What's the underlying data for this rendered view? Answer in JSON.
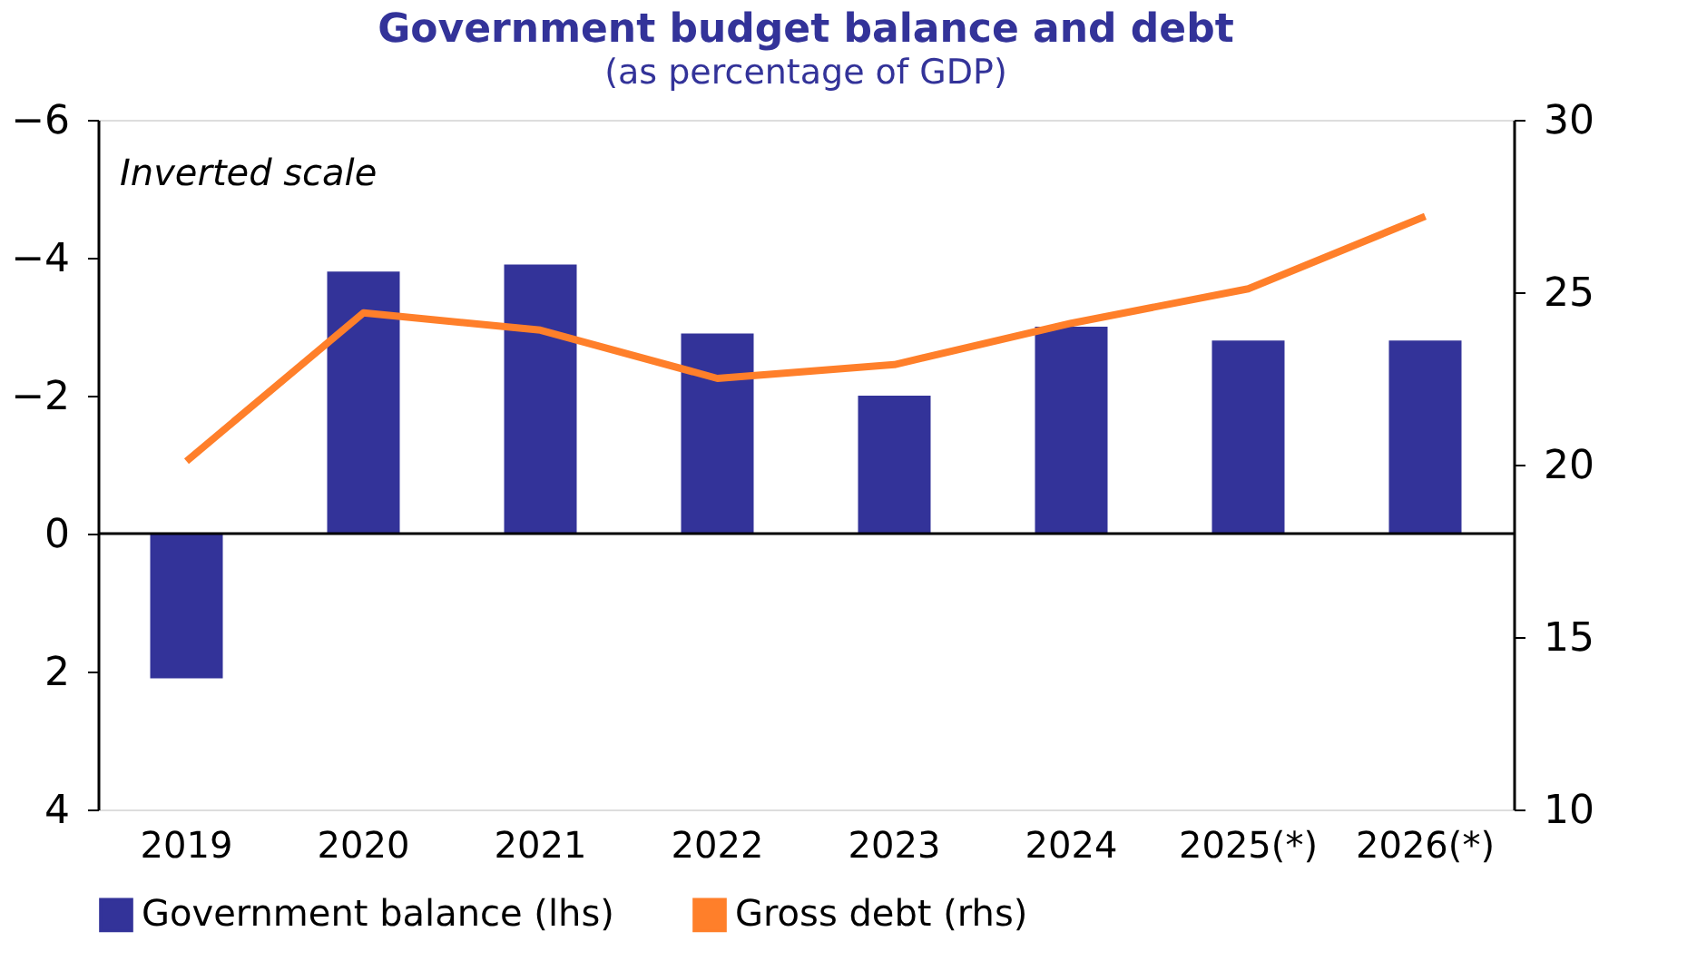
{
  "chart_data": {
    "type": "bar",
    "title": "Government budget balance and debt",
    "subtitle": "(as percentage of GDP)",
    "categories": [
      "2019",
      "2020",
      "2021",
      "2022",
      "2023",
      "2024",
      "2025(*)",
      "2026(*)"
    ],
    "series": [
      {
        "name": "Government balance (lhs)",
        "color": "#333399",
        "values": [
          2.1,
          -3.8,
          -3.9,
          -2.9,
          -2.0,
          -3.0,
          -2.8,
          -2.8
        ]
      },
      {
        "name": "Gross debt (rhs)",
        "type": "line",
        "axis": "y2",
        "color": "#ff7f2a",
        "values": [
          20.1,
          24.4,
          23.9,
          22.5,
          22.9,
          24.1,
          25.1,
          27.2
        ]
      }
    ],
    "ylim": [
      4,
      -6
    ],
    "yticks": [
      -6,
      -4,
      -2,
      0,
      2,
      4
    ],
    "y2lim": [
      10,
      30
    ],
    "y2ticks": [
      10,
      15,
      20,
      25,
      30
    ],
    "ref_lines": [
      {
        "axis": "y",
        "value": 0,
        "color": "#000000"
      }
    ],
    "annotations": [
      "Inverted scale"
    ],
    "grid": false,
    "legend": "bottom",
    "marker": "none",
    "line_style": "solid"
  }
}
